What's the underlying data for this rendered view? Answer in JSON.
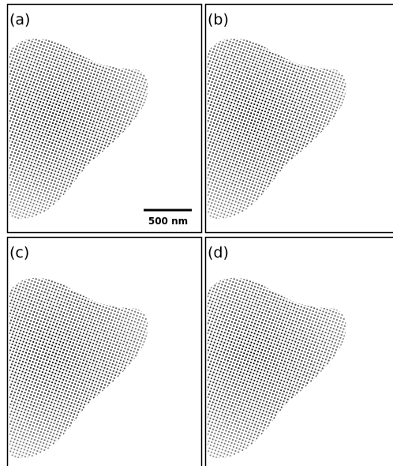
{
  "panels": [
    {
      "label": "(a)"
    },
    {
      "label": "(b)"
    },
    {
      "label": "(c)"
    },
    {
      "label": "(d)"
    }
  ],
  "scale_bar": {
    "label": "500 nm"
  }
}
